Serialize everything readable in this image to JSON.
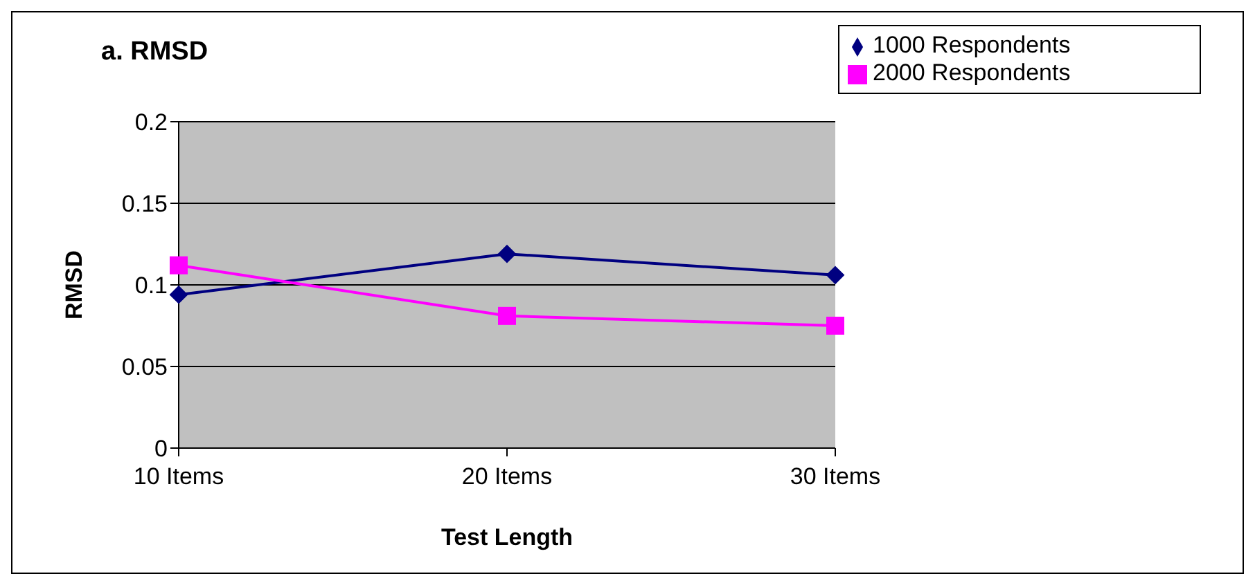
{
  "chart_data": {
    "type": "line",
    "title": "a. RMSD",
    "xlabel": "Test Length",
    "ylabel": "RMSD",
    "categories": [
      "10 Items",
      "20 Items",
      "30 Items"
    ],
    "series": [
      {
        "name": "1000 Respondents",
        "color": "#000080",
        "marker": "diamond",
        "values": [
          0.094,
          0.119,
          0.106
        ]
      },
      {
        "name": "2000 Respondents",
        "color": "#ff00ff",
        "marker": "square",
        "values": [
          0.112,
          0.081,
          0.075
        ]
      }
    ],
    "ylim": [
      0,
      0.2
    ],
    "yticks": [
      0,
      0.05,
      0.1,
      0.15,
      0.2
    ],
    "grid": "y",
    "legend": "top right"
  }
}
